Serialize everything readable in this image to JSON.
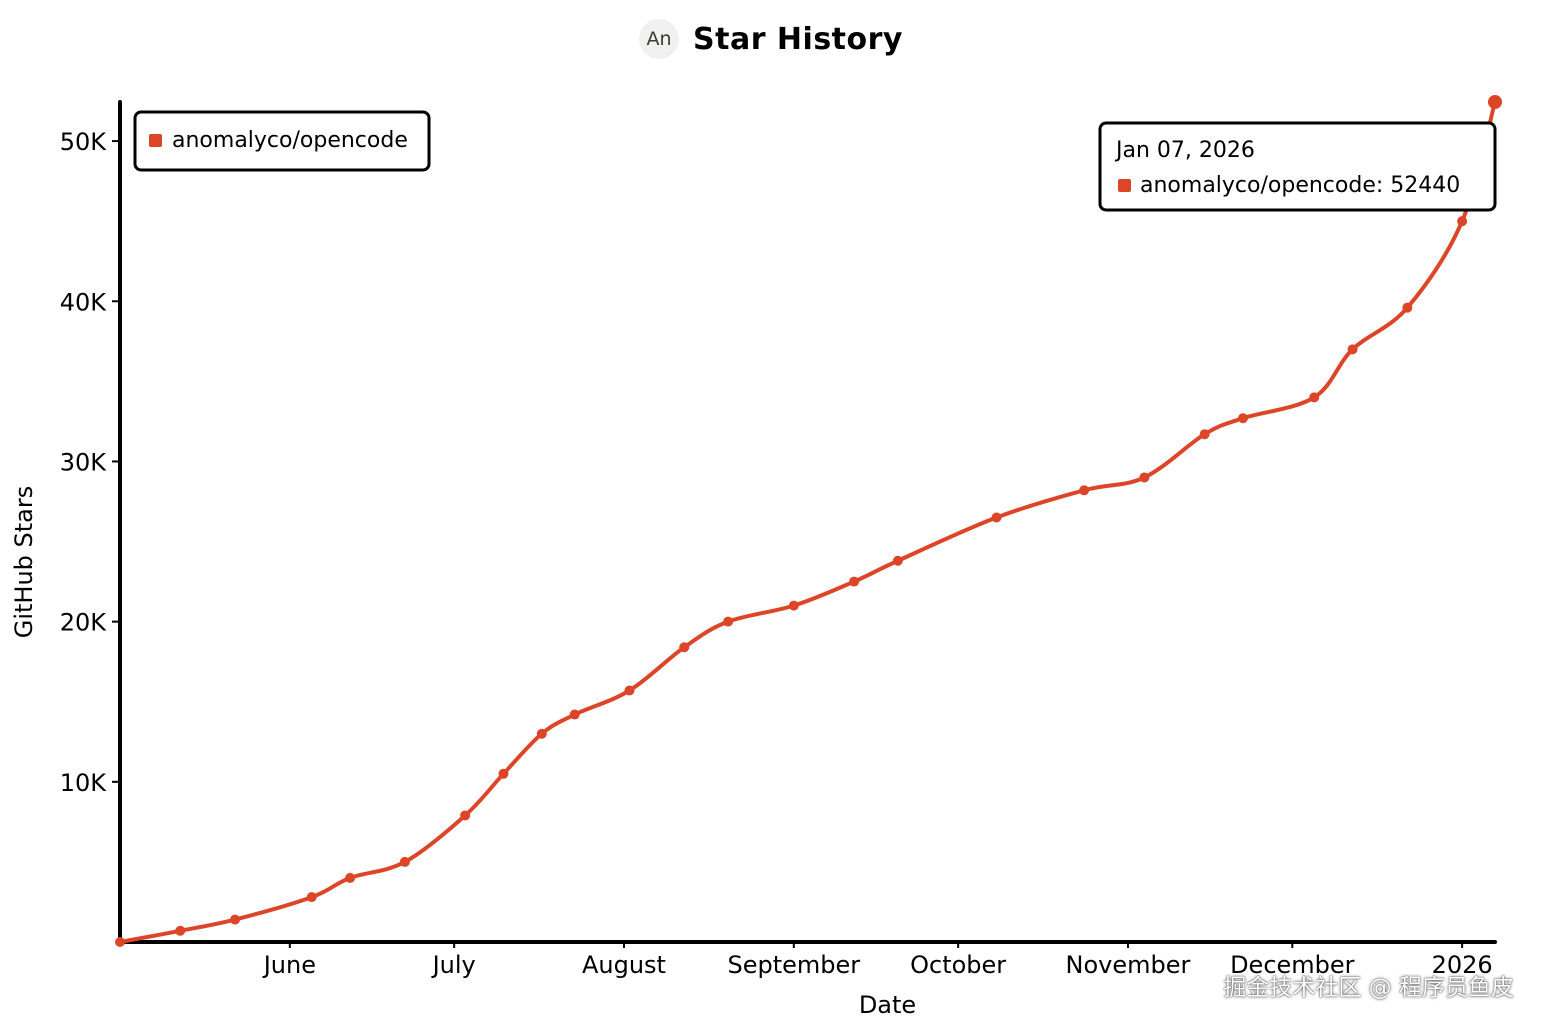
{
  "header": {
    "avatar_text": "An",
    "title": "Star History"
  },
  "colors": {
    "series": "#dd4528",
    "axis": "#000000"
  },
  "chart_data": {
    "type": "line",
    "xlabel": "Date",
    "ylabel": "GitHub Stars",
    "xlim": [
      "2025-05-01",
      "2026-01-07"
    ],
    "ylim": [
      0,
      52440
    ],
    "x_ticks": [
      {
        "date": "2025-06-01",
        "label": "June"
      },
      {
        "date": "2025-07-01",
        "label": "July"
      },
      {
        "date": "2025-08-01",
        "label": "August"
      },
      {
        "date": "2025-09-01",
        "label": "September"
      },
      {
        "date": "2025-10-01",
        "label": "October"
      },
      {
        "date": "2025-11-01",
        "label": "November"
      },
      {
        "date": "2025-12-01",
        "label": "December"
      },
      {
        "date": "2026-01-01",
        "label": "2026"
      }
    ],
    "y_ticks": [
      {
        "value": 10000,
        "label": "10K"
      },
      {
        "value": 20000,
        "label": "20K"
      },
      {
        "value": 30000,
        "label": "30K"
      },
      {
        "value": 40000,
        "label": "40K"
      },
      {
        "value": 50000,
        "label": "50K"
      }
    ],
    "legend_position": "top-left",
    "series": [
      {
        "name": "anomalyco/opencode",
        "points": [
          {
            "x": "2025-05-01",
            "y": 0
          },
          {
            "x": "2025-05-12",
            "y": 700
          },
          {
            "x": "2025-05-22",
            "y": 1400
          },
          {
            "x": "2025-06-05",
            "y": 2800
          },
          {
            "x": "2025-06-12",
            "y": 4000
          },
          {
            "x": "2025-06-22",
            "y": 5000
          },
          {
            "x": "2025-07-03",
            "y": 7900
          },
          {
            "x": "2025-07-10",
            "y": 10500
          },
          {
            "x": "2025-07-17",
            "y": 13000
          },
          {
            "x": "2025-07-23",
            "y": 14200
          },
          {
            "x": "2025-08-02",
            "y": 15700
          },
          {
            "x": "2025-08-12",
            "y": 18400
          },
          {
            "x": "2025-08-20",
            "y": 20000
          },
          {
            "x": "2025-09-01",
            "y": 21000
          },
          {
            "x": "2025-09-12",
            "y": 22500
          },
          {
            "x": "2025-09-20",
            "y": 23800
          },
          {
            "x": "2025-10-08",
            "y": 26500
          },
          {
            "x": "2025-10-24",
            "y": 28200
          },
          {
            "x": "2025-11-04",
            "y": 29000
          },
          {
            "x": "2025-11-15",
            "y": 31700
          },
          {
            "x": "2025-11-22",
            "y": 32700
          },
          {
            "x": "2025-12-05",
            "y": 34000
          },
          {
            "x": "2025-12-12",
            "y": 37000
          },
          {
            "x": "2025-12-22",
            "y": 39600
          },
          {
            "x": "2026-01-01",
            "y": 45000
          },
          {
            "x": "2026-01-07",
            "y": 52440
          }
        ]
      }
    ],
    "tooltip": {
      "date": "Jan 07, 2026",
      "series": "anomalyco/opencode",
      "value": 52440
    }
  },
  "watermark": "掘金技术社区 @ 程序员鱼皮"
}
